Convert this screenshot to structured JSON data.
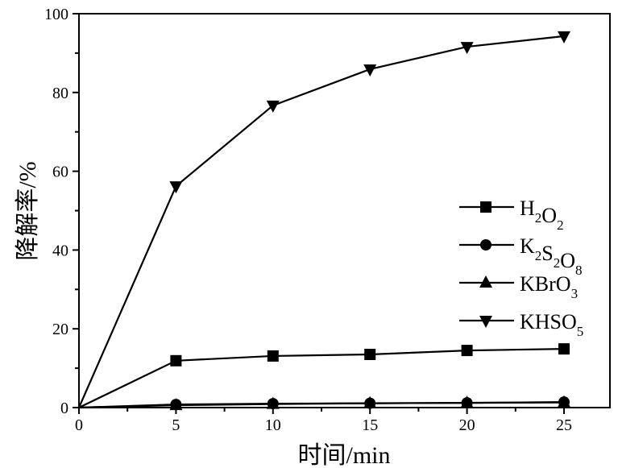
{
  "chart_data": {
    "type": "line",
    "title": "",
    "xlabel": "时间/min",
    "ylabel": "降解率/%",
    "xlim": [
      0,
      27.4
    ],
    "ylim": [
      0,
      100
    ],
    "xticks": [
      0,
      5,
      10,
      15,
      20,
      25
    ],
    "yticks": [
      0,
      20,
      40,
      60,
      80,
      100
    ],
    "grid": false,
    "legend_position": "right",
    "x": [
      0,
      5,
      10,
      15,
      20,
      25
    ],
    "series": [
      {
        "name": "H2O2",
        "marker": "square",
        "values": [
          0,
          11.9,
          13.1,
          13.5,
          14.5,
          14.9
        ]
      },
      {
        "name": "K2S2O8",
        "marker": "circle",
        "values": [
          0,
          0.8,
          1.0,
          1.1,
          1.2,
          1.4
        ]
      },
      {
        "name": "KBrO3",
        "marker": "triangle-up",
        "values": [
          0,
          0.6,
          0.9,
          1.1,
          1.2,
          1.3
        ]
      },
      {
        "name": "KHSO5",
        "marker": "triangle-down",
        "values": [
          0,
          56.2,
          76.7,
          85.9,
          91.6,
          94.3
        ]
      }
    ],
    "color": "#000000"
  }
}
